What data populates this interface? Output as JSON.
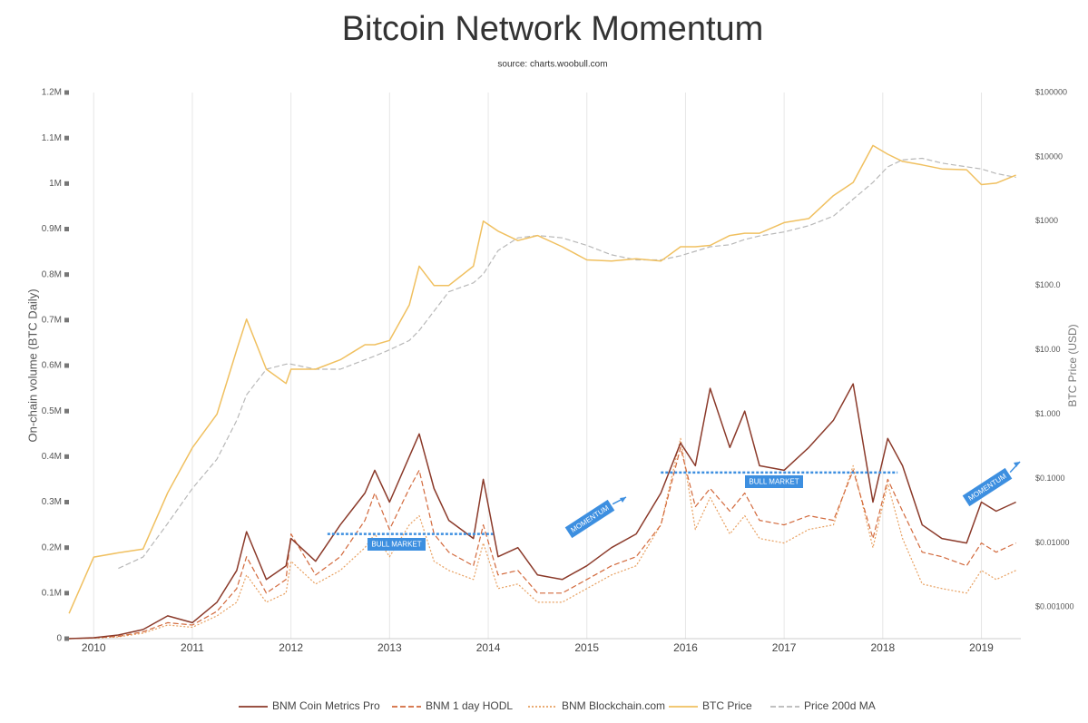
{
  "chart_data": {
    "type": "line",
    "title": "Bitcoin Network Momentum",
    "subtitle": "source: charts.woobull.com",
    "ylabel": "On-chain volume (BTC Daily)",
    "y2label": "BTC Price (USD)",
    "x": [
      2009.75,
      2010.0,
      2010.25,
      2010.5,
      2010.75,
      2011.0,
      2011.25,
      2011.45,
      2011.55,
      2011.75,
      2011.95,
      2012.0,
      2012.25,
      2012.5,
      2012.75,
      2012.85,
      2013.0,
      2013.2,
      2013.3,
      2013.45,
      2013.6,
      2013.85,
      2013.95,
      2014.1,
      2014.3,
      2014.5,
      2014.75,
      2015.0,
      2015.25,
      2015.5,
      2015.75,
      2015.95,
      2016.1,
      2016.25,
      2016.45,
      2016.6,
      2016.75,
      2017.0,
      2017.25,
      2017.5,
      2017.7,
      2017.9,
      2018.05,
      2018.2,
      2018.4,
      2018.6,
      2018.85,
      2019.0,
      2019.15,
      2019.35
    ],
    "xlim": [
      2009.74,
      2019.4
    ],
    "xticks": [
      2010,
      2011,
      2012,
      2013,
      2014,
      2015,
      2016,
      2017,
      2018,
      2019
    ],
    "xgrid": true,
    "ylim": [
      0,
      1200000
    ],
    "yticks": [
      0,
      {
        "value": 100000,
        "label": "0.1M"
      },
      {
        "value": 200000,
        "label": "0.2M"
      },
      {
        "value": 300000,
        "label": "0.3M"
      },
      {
        "value": 400000,
        "label": "0.4M"
      },
      {
        "value": 500000,
        "label": "0.5M"
      },
      {
        "value": 600000,
        "label": "0.6M"
      },
      {
        "value": 700000,
        "label": "0.7M"
      },
      {
        "value": 800000,
        "label": "0.8M"
      },
      {
        "value": 900000,
        "label": "0.9M"
      },
      {
        "value": 1000000,
        "label": "1M"
      },
      {
        "value": 1100000,
        "label": "1.1M"
      },
      {
        "value": 1200000,
        "label": "1.2M"
      }
    ],
    "y2scale": "log",
    "y2lim": [
      0.000324,
      100000
    ],
    "y2ticks": [
      {
        "value": 0.001,
        "label": "$0.001000"
      },
      {
        "value": 0.01,
        "label": "$0.01000"
      },
      {
        "value": 0.1,
        "label": "$0.1000"
      },
      {
        "value": 1,
        "label": "$1.000"
      },
      {
        "value": 10,
        "label": "$10.00"
      },
      {
        "value": 100,
        "label": "$100.0"
      },
      {
        "value": 1000,
        "label": "$1000"
      },
      {
        "value": 10000,
        "label": "$10000"
      },
      {
        "value": 100000,
        "label": "$100000"
      }
    ],
    "series": [
      {
        "name": "BNM Coin Metrics Pro",
        "color": "#8b3a2a",
        "style": "solid",
        "values": [
          0,
          2000,
          8000,
          20000,
          50000,
          35000,
          80000,
          150000,
          235000,
          130000,
          160000,
          220000,
          170000,
          250000,
          320000,
          370000,
          300000,
          400000,
          450000,
          330000,
          260000,
          220000,
          350000,
          180000,
          200000,
          140000,
          130000,
          160000,
          200000,
          230000,
          320000,
          430000,
          380000,
          550000,
          420000,
          500000,
          380000,
          370000,
          420000,
          480000,
          560000,
          300000,
          440000,
          380000,
          250000,
          220000,
          210000,
          300000,
          280000,
          300000
        ]
      },
      {
        "name": "BNM 1 day HODL",
        "color": "#d2693c",
        "style": "dashed",
        "values": [
          0,
          1500,
          5000,
          15000,
          35000,
          30000,
          60000,
          110000,
          180000,
          100000,
          130000,
          230000,
          140000,
          180000,
          260000,
          320000,
          240000,
          330000,
          370000,
          230000,
          190000,
          160000,
          250000,
          140000,
          150000,
          100000,
          100000,
          130000,
          160000,
          180000,
          250000,
          420000,
          290000,
          330000,
          280000,
          320000,
          260000,
          250000,
          270000,
          260000,
          370000,
          220000,
          350000,
          280000,
          190000,
          180000,
          160000,
          210000,
          190000,
          210000
        ]
      },
      {
        "name": "BNM Blockchain.com",
        "color": "#e8a060",
        "style": "dotted",
        "values": [
          0,
          1000,
          4000,
          12000,
          30000,
          25000,
          50000,
          80000,
          140000,
          80000,
          100000,
          170000,
          120000,
          150000,
          200000,
          230000,
          180000,
          250000,
          270000,
          170000,
          150000,
          130000,
          210000,
          110000,
          120000,
          80000,
          80000,
          110000,
          140000,
          160000,
          250000,
          440000,
          240000,
          310000,
          230000,
          270000,
          220000,
          210000,
          240000,
          250000,
          380000,
          200000,
          340000,
          220000,
          120000,
          110000,
          100000,
          150000,
          130000,
          150000
        ]
      },
      {
        "name": "BTC Price",
        "color": "#f0c060",
        "style": "solid",
        "axis": "y2",
        "values": [
          0.0008,
          0.006,
          0.007,
          0.008,
          0.06,
          0.3,
          1.0,
          10,
          30,
          5,
          3,
          5,
          5,
          7,
          12,
          12,
          14,
          50,
          200,
          100,
          100,
          200,
          1000,
          700,
          500,
          600,
          400,
          250,
          240,
          260,
          240,
          400,
          400,
          420,
          600,
          650,
          650,
          950,
          1100,
          2500,
          4000,
          15000,
          11000,
          8500,
          7500,
          6500,
          6300,
          3700,
          3900,
          5200
        ]
      },
      {
        "name": "Price 200d MA",
        "color": "#b8b8b8",
        "style": "dashed",
        "axis": "y2",
        "values": [
          null,
          null,
          0.004,
          0.006,
          0.02,
          0.07,
          0.2,
          0.8,
          2,
          5,
          6,
          6,
          5,
          5,
          7,
          8,
          10,
          14,
          20,
          40,
          80,
          110,
          150,
          350,
          550,
          600,
          550,
          420,
          300,
          250,
          250,
          290,
          340,
          400,
          430,
          520,
          590,
          680,
          850,
          1200,
          2200,
          4000,
          7000,
          9000,
          9500,
          8000,
          7000,
          6500,
          5500,
          4800
        ]
      }
    ],
    "annotations": [
      "BULL MARKET",
      "BULL MARKET",
      "MOMENTUM",
      "MOMENTUM"
    ]
  }
}
